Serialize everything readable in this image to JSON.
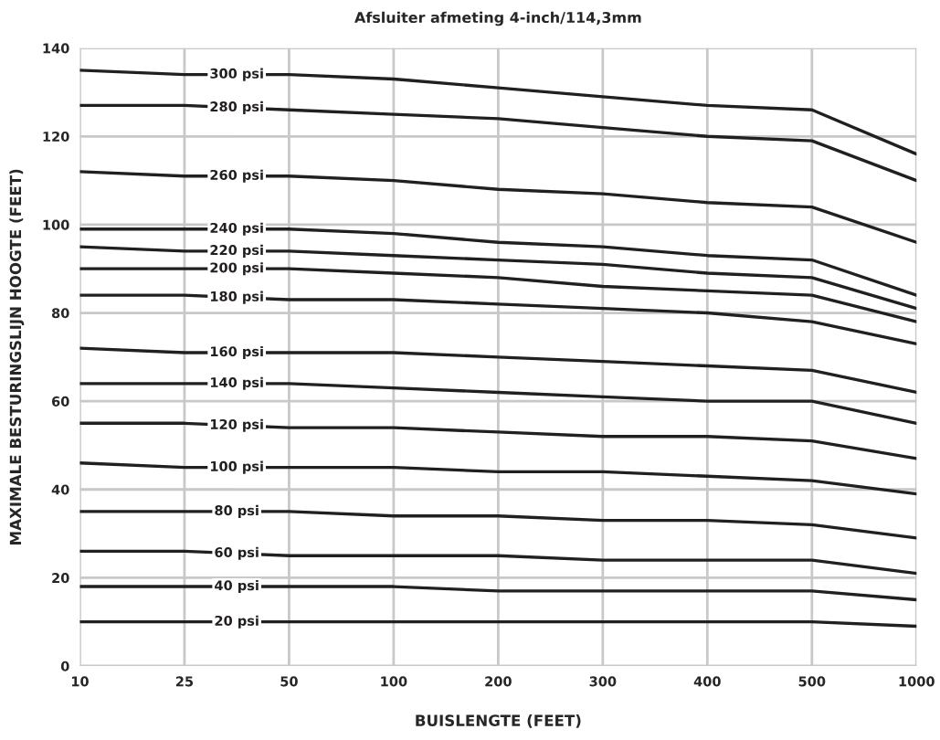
{
  "chart_data": {
    "type": "line",
    "title": "Afsluiter afmeting 4-inch/114,3mm",
    "xlabel": "BUISLENGTE (FEET)",
    "ylabel": "MAXIMALE BESTURINGSLIJN HOOGTE (FEET)",
    "categories": [
      "10",
      "25",
      "50",
      "100",
      "200",
      "300",
      "400",
      "500",
      "1000"
    ],
    "ylim": [
      0,
      140
    ],
    "yticks": [
      0,
      20,
      40,
      60,
      80,
      100,
      120,
      140
    ],
    "grid": true,
    "legend": false,
    "marker": "none",
    "line_style": "solid",
    "series": [
      {
        "name": "300 psi",
        "color": "#231f20",
        "values": [
          135,
          134,
          134,
          133,
          131,
          129,
          127,
          126,
          116
        ]
      },
      {
        "name": "280 psi",
        "color": "#231f20",
        "values": [
          127,
          127,
          126,
          125,
          124,
          122,
          120,
          119,
          110
        ]
      },
      {
        "name": "260 psi",
        "color": "#231f20",
        "values": [
          112,
          111,
          111,
          110,
          108,
          107,
          105,
          104,
          96
        ]
      },
      {
        "name": "240 psi",
        "color": "#231f20",
        "values": [
          99,
          99,
          99,
          98,
          96,
          95,
          93,
          92,
          84
        ]
      },
      {
        "name": "220 psi",
        "color": "#231f20",
        "values": [
          95,
          94,
          94,
          93,
          92,
          91,
          89,
          88,
          81
        ]
      },
      {
        "name": "200 psi",
        "color": "#231f20",
        "values": [
          90,
          90,
          90,
          89,
          88,
          86,
          85,
          84,
          78
        ]
      },
      {
        "name": "180 psi",
        "color": "#231f20",
        "values": [
          84,
          84,
          83,
          83,
          82,
          81,
          80,
          78,
          73
        ]
      },
      {
        "name": "160 psi",
        "color": "#231f20",
        "values": [
          72,
          71,
          71,
          71,
          70,
          69,
          68,
          67,
          62
        ]
      },
      {
        "name": "140 psi",
        "color": "#231f20",
        "values": [
          64,
          64,
          64,
          63,
          62,
          61,
          60,
          60,
          55
        ]
      },
      {
        "name": "120 psi",
        "color": "#231f20",
        "values": [
          55,
          55,
          54,
          54,
          53,
          52,
          52,
          51,
          47
        ]
      },
      {
        "name": "100 psi",
        "color": "#231f20",
        "values": [
          46,
          45,
          45,
          45,
          44,
          44,
          43,
          42,
          39
        ]
      },
      {
        "name": "80 psi",
        "color": "#231f20",
        "values": [
          35,
          35,
          35,
          34,
          34,
          33,
          33,
          32,
          29
        ]
      },
      {
        "name": "60 psi",
        "color": "#231f20",
        "values": [
          26,
          26,
          25,
          25,
          25,
          24,
          24,
          24,
          21
        ]
      },
      {
        "name": "40 psi",
        "color": "#231f20",
        "values": [
          18,
          18,
          18,
          18,
          17,
          17,
          17,
          17,
          15
        ]
      },
      {
        "name": "20 psi",
        "color": "#231f20",
        "values": [
          10,
          10,
          10,
          10,
          10,
          10,
          10,
          10,
          9
        ]
      }
    ]
  }
}
